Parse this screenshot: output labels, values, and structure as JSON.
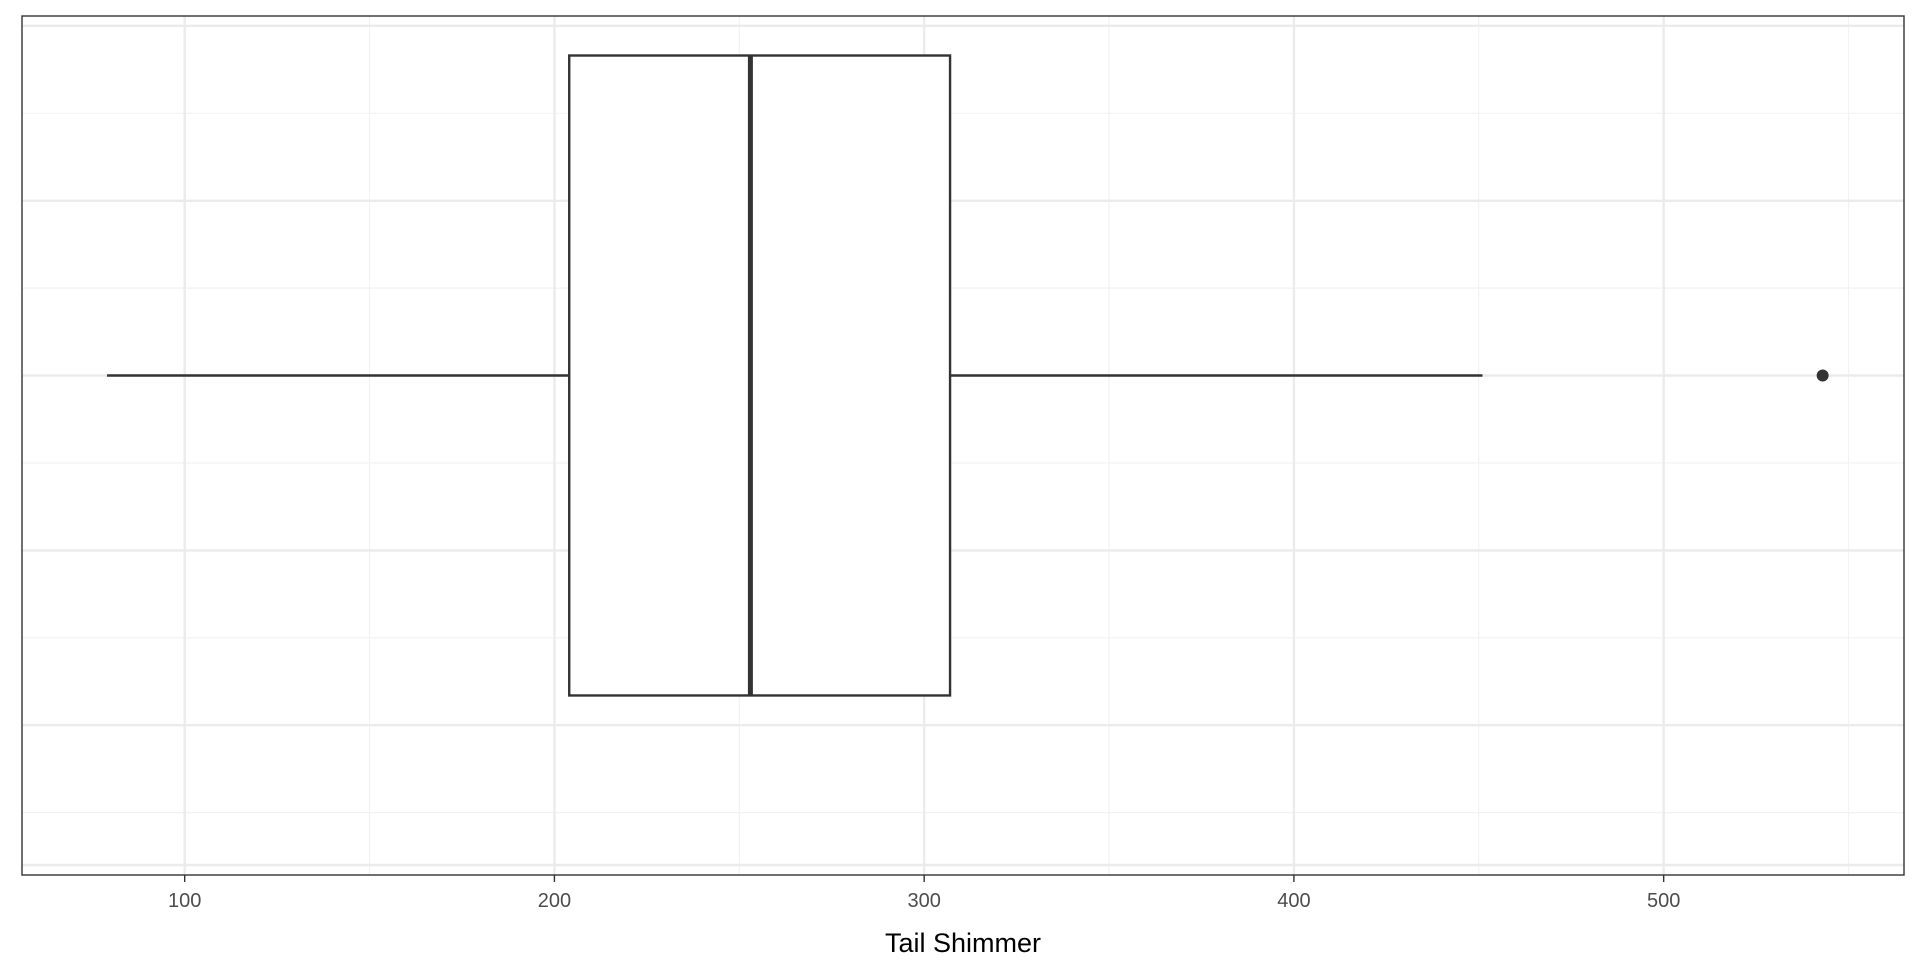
{
  "chart_data": {
    "type": "boxplot",
    "orientation": "horizontal",
    "title": "",
    "xlabel": "Tail Shimmer",
    "ylabel": "",
    "xlim": [
      56,
      565
    ],
    "x_ticks": [
      100,
      200,
      300,
      400,
      500
    ],
    "x_tick_labels": [
      "100",
      "200",
      "300",
      "400",
      "500"
    ],
    "grid": true,
    "legend": "none",
    "box": {
      "whisker_low": 79,
      "q1": 204,
      "median": 253,
      "q3": 307,
      "whisker_high": 451,
      "outliers": [
        543
      ]
    },
    "colors": {
      "box_stroke": "#333333",
      "box_fill": "#ffffff",
      "grid_major": "#ebebeb",
      "grid_minor": "#f2f2f2",
      "panel_border": "#333333"
    }
  }
}
